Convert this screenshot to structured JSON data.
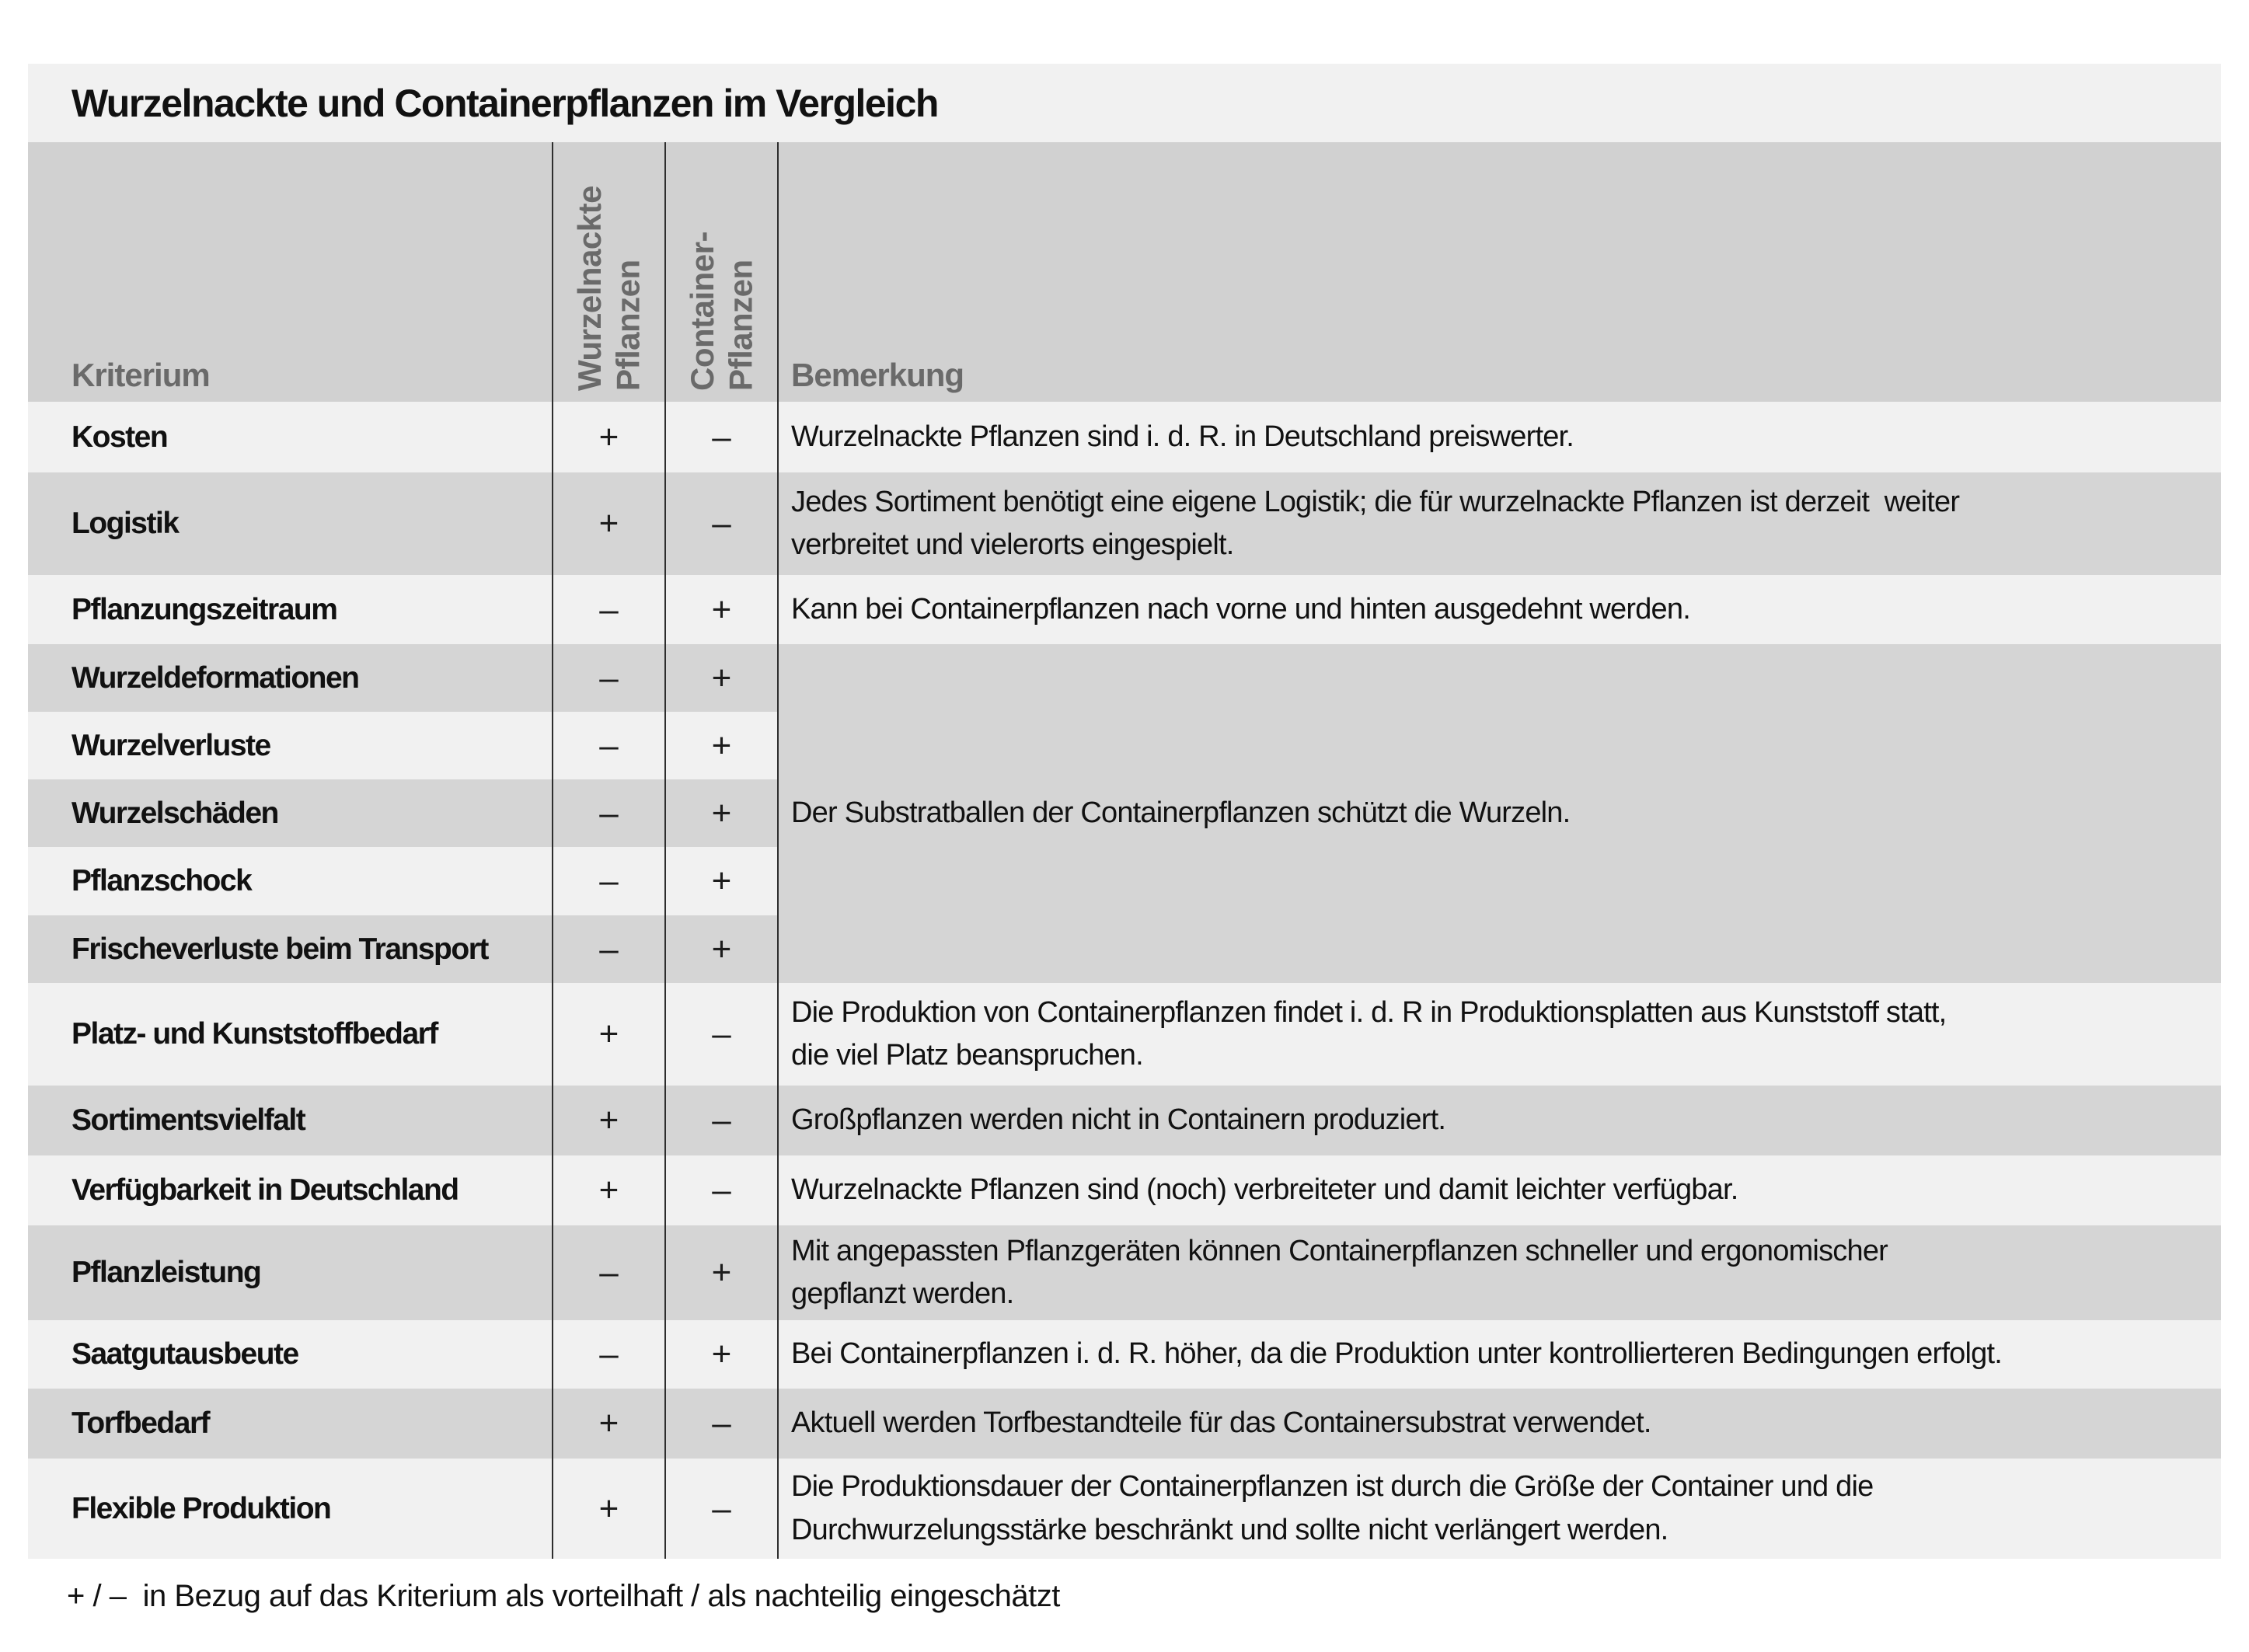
{
  "title": "Wurzelnackte und Containerpflanzen im Vergleich",
  "table": {
    "headers": {
      "kriterium": "Kriterium",
      "wurzelnackte": "Wurzelnackte\nPflanzen",
      "container": "Container-\nPflanzen",
      "bemerkung": "Bemerkung"
    },
    "rows": [
      {
        "kriterium": "Kosten",
        "wurzelnackte": "+",
        "container": "–",
        "bemerkung": "Wurzelnackte Pflanzen sind i. d. R. in Deutschland preiswerter."
      },
      {
        "kriterium": "Logistik",
        "wurzelnackte": "+",
        "container": "–",
        "bemerkung": "Jedes Sortiment benötigt eine eigene Logistik; die für wurzelnackte Pflanzen ist derzeit  weiter\nverbreitet und vielerorts eingespielt."
      },
      {
        "kriterium": "Pflanzungszeitraum",
        "wurzelnackte": "–",
        "container": "+",
        "bemerkung": "Kann bei Containerpflanzen nach vorne und hinten ausgedehnt werden."
      },
      {
        "kriterium": "Wurzeldeformationen",
        "wurzelnackte": "–",
        "container": "+"
      },
      {
        "kriterium": "Wurzelverluste",
        "wurzelnackte": "–",
        "container": "+"
      },
      {
        "kriterium": "Wurzelschäden",
        "wurzelnackte": "–",
        "container": "+"
      },
      {
        "kriterium": "Pflanzschock",
        "wurzelnackte": "–",
        "container": "+"
      },
      {
        "kriterium": "Frischeverluste beim Transport",
        "wurzelnackte": "–",
        "container": "+"
      },
      {
        "kriterium": "Platz- und Kunststoffbedarf",
        "wurzelnackte": "+",
        "container": "–",
        "bemerkung": "Die Produktion von Containerpflanzen findet i. d. R in Produktionsplatten aus Kunststoff statt,\ndie viel Platz beanspruchen."
      },
      {
        "kriterium": "Sortimentsvielfalt",
        "wurzelnackte": "+",
        "container": "–",
        "bemerkung": "Großpflanzen werden nicht in Containern produziert."
      },
      {
        "kriterium": "Verfügbarkeit in Deutschland",
        "wurzelnackte": "+",
        "container": "–",
        "bemerkung": "Wurzelnackte Pflanzen sind (noch) verbreiteter und damit leichter verfügbar."
      },
      {
        "kriterium": "Pflanzleistung",
        "wurzelnackte": "–",
        "container": "+",
        "bemerkung": "Mit angepassten Pflanzgeräten können Containerpflanzen schneller und ergonomischer\ngepflanzt werden."
      },
      {
        "kriterium": "Saatgutausbeute",
        "wurzelnackte": "–",
        "container": "+",
        "bemerkung": "Bei Containerpflanzen i. d. R. höher, da die Produktion unter kontrollierteren Bedingungen erfolgt."
      },
      {
        "kriterium": "Torfbedarf",
        "wurzelnackte": "+",
        "container": "–",
        "bemerkung": "Aktuell werden Torfbestandteile für das Containersubstrat verwendet."
      },
      {
        "kriterium": "Flexible Produktion",
        "wurzelnackte": "+",
        "container": "–",
        "bemerkung": "Die Produktionsdauer der Containerpflanzen ist durch die Größe der Container und die\nDurchwurzelungsstärke beschränkt und sollte nicht verlängert werden."
      }
    ],
    "merged_bemerkung": {
      "text": "Der Substratballen der Containerpflanzen schützt die Wurzeln.",
      "start_row_index": 3,
      "row_span": 5
    }
  },
  "footnote": "+ / –  in Bezug auf das Kriterium als vorteilhaft / als nachteilig eingeschätzt"
}
